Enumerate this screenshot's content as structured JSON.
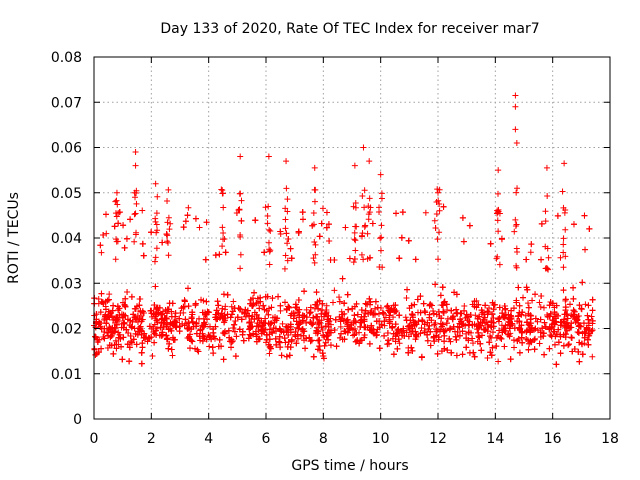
{
  "chart_data": {
    "type": "scatter",
    "title": "Day 133 of 2020, Rate Of TEC Index for receiver mar7",
    "xlabel": "GPS time / hours",
    "ylabel": "ROTI / TECUs",
    "xlim": [
      0,
      18
    ],
    "ylim": [
      0,
      0.08
    ],
    "x_ticks": [
      "0",
      "2",
      "4",
      "6",
      "8",
      "10",
      "12",
      "14",
      "16",
      "18"
    ],
    "y_ticks": [
      "0",
      "0.01",
      "0.02",
      "0.03",
      "0.04",
      "0.05",
      "0.06",
      "0.07",
      "0.08"
    ],
    "grid": true,
    "marker": "+",
    "color": "#ff0000",
    "series": [
      {
        "name": "ROTI",
        "x_range": [
          0,
          17.4
        ],
        "typical_range": [
          0.008,
          0.035
        ],
        "median": 0.021,
        "notable_points": [
          {
            "x": 1.45,
            "y": 0.059
          },
          {
            "x": 1.45,
            "y": 0.056
          },
          {
            "x": 5.1,
            "y": 0.058
          },
          {
            "x": 6.1,
            "y": 0.058
          },
          {
            "x": 6.7,
            "y": 0.057
          },
          {
            "x": 7.7,
            "y": 0.0555
          },
          {
            "x": 9.1,
            "y": 0.056
          },
          {
            "x": 9.4,
            "y": 0.06
          },
          {
            "x": 9.6,
            "y": 0.057
          },
          {
            "x": 10.0,
            "y": 0.054
          },
          {
            "x": 14.7,
            "y": 0.0715
          },
          {
            "x": 14.7,
            "y": 0.069
          },
          {
            "x": 14.7,
            "y": 0.064
          },
          {
            "x": 14.75,
            "y": 0.061
          },
          {
            "x": 14.1,
            "y": 0.055
          },
          {
            "x": 16.4,
            "y": 0.0565
          },
          {
            "x": 15.8,
            "y": 0.0555
          },
          {
            "x": 12.0,
            "y": 0.05
          },
          {
            "x": 2.15,
            "y": 0.052
          },
          {
            "x": 0.8,
            "y": 0.05
          }
        ]
      }
    ]
  }
}
